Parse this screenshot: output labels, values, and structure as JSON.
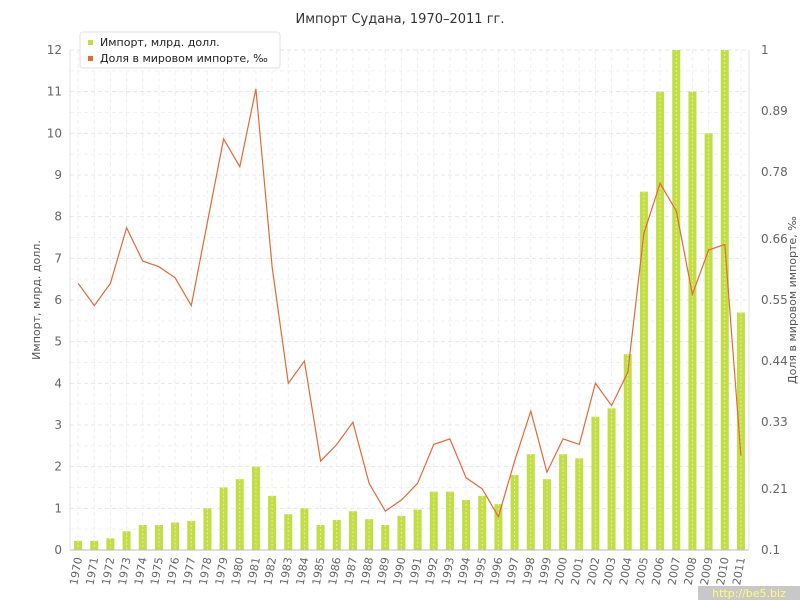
{
  "chart_data": {
    "type": "bar",
    "title": "Импорт Судана, 1970–2011 гг.",
    "xlabel": "",
    "ylabel": "Импорт, млрд. долл.",
    "y2label": "Доля в мировом импорте, ‰",
    "categories": [
      "1970",
      "1971",
      "1972",
      "1973",
      "1974",
      "1975",
      "1976",
      "1977",
      "1978",
      "1979",
      "1980",
      "1981",
      "1982",
      "1983",
      "1984",
      "1985",
      "1986",
      "1987",
      "1988",
      "1989",
      "1990",
      "1991",
      "1992",
      "1993",
      "1994",
      "1995",
      "1996",
      "1997",
      "1998",
      "1999",
      "2000",
      "2001",
      "2002",
      "2003",
      "2004",
      "2005",
      "2006",
      "2007",
      "2008",
      "2009",
      "2010",
      "2011"
    ],
    "ylim": [
      0,
      12
    ],
    "y_ticks": [
      "0",
      "1",
      "2",
      "3",
      "4",
      "5",
      "6",
      "7",
      "8",
      "9",
      "10",
      "11",
      "12"
    ],
    "y2lim": [
      0.1,
      1
    ],
    "y2_ticks": [
      "0.1",
      "0.21",
      "0.33",
      "0.44",
      "0.55",
      "0.66",
      "0.78",
      "0.89",
      "1"
    ],
    "grid": true,
    "legend_position": "top-left",
    "series": [
      {
        "name": "Импорт, млрд. долл.",
        "type": "bar",
        "axis": "left",
        "color": "#c2de44",
        "values": [
          0.22,
          0.22,
          0.28,
          0.45,
          0.6,
          0.6,
          0.66,
          0.7,
          1.0,
          1.5,
          1.7,
          2.0,
          1.3,
          0.86,
          1.0,
          0.6,
          0.72,
          0.93,
          0.74,
          0.6,
          0.82,
          0.97,
          1.4,
          1.4,
          1.2,
          1.3,
          1.1,
          1.8,
          2.3,
          1.7,
          2.3,
          2.2,
          3.2,
          3.4,
          4.7,
          8.6,
          11.0,
          12.0,
          11.0,
          10.0,
          12.0,
          5.7
        ]
      },
      {
        "name": "Доля в мировом импорте, ‰",
        "type": "line",
        "axis": "right",
        "color": "#e06a3a",
        "values": [
          0.58,
          0.54,
          0.58,
          0.68,
          0.62,
          0.61,
          0.59,
          0.54,
          0.69,
          0.84,
          0.79,
          0.93,
          0.61,
          0.4,
          0.44,
          0.26,
          0.29,
          0.33,
          0.22,
          0.17,
          0.19,
          0.22,
          0.29,
          0.3,
          0.23,
          0.21,
          0.16,
          0.26,
          0.35,
          0.24,
          0.3,
          0.29,
          0.4,
          0.36,
          0.42,
          0.67,
          0.76,
          0.71,
          0.56,
          0.64,
          0.65,
          0.27
        ]
      }
    ]
  },
  "watermark": "http://be5.biz"
}
